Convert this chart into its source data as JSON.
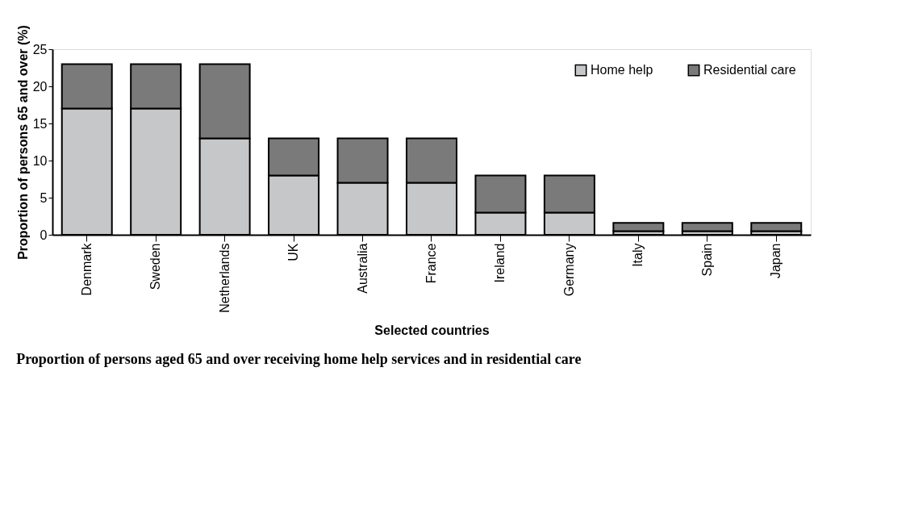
{
  "chart_data": {
    "type": "bar",
    "stacked": true,
    "categories": [
      "Denmark",
      "Sweden",
      "Netherlands",
      "UK",
      "Australia",
      "France",
      "Ireland",
      "Germany",
      "Italy",
      "Spain",
      "Japan"
    ],
    "series": [
      {
        "name": "Home help",
        "color": "#c6c7c9",
        "values": [
          17,
          17,
          13,
          8,
          7,
          7,
          3,
          3,
          0.5,
          0.5,
          0.5
        ]
      },
      {
        "name": "Residential care",
        "color": "#7a7a7a",
        "values": [
          6,
          6,
          10,
          5,
          6,
          6,
          5,
          5,
          1.1,
          1.1,
          1.1
        ]
      }
    ],
    "xlabel": "Selected countries",
    "ylabel": "Proportion of persons 65 and over (%)",
    "ylim": [
      0,
      25
    ],
    "yticks": [
      0,
      5,
      10,
      15,
      20,
      25
    ],
    "grid": false,
    "legend": "top right",
    "annotations": [
      "Proportion of persons aged 65 and over  receiving home help  services and in residential care"
    ]
  }
}
